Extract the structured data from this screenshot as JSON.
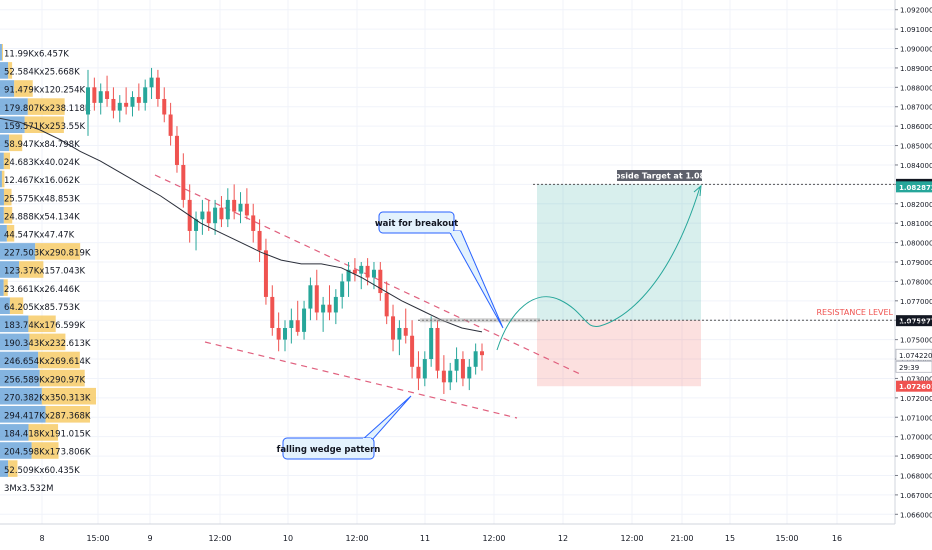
{
  "chart_data": {
    "type": "candlestick",
    "y_axis": {
      "range": [
        1.0655,
        1.0925
      ],
      "ticks": [
        "1.066000",
        "1.067000",
        "1.068000",
        "1.069000",
        "1.070000",
        "1.071000",
        "1.072000",
        "1.073000",
        "1.074000",
        "1.075000",
        "1.076000",
        "1.077000",
        "1.078000",
        "1.079000",
        "1.080000",
        "1.081000",
        "1.082000",
        "1.083000",
        "1.084000",
        "1.085000",
        "1.086000",
        "1.087000",
        "1.088000",
        "1.089000",
        "1.090000",
        "1.091000",
        "1.092000"
      ],
      "tick_values": [
        1.066,
        1.067,
        1.068,
        1.069,
        1.07,
        1.071,
        1.072,
        1.073,
        1.074,
        1.075,
        1.076,
        1.077,
        1.078,
        1.079,
        1.08,
        1.081,
        1.082,
        1.083,
        1.084,
        1.085,
        1.086,
        1.087,
        1.088,
        1.089,
        1.09,
        1.091,
        1.092
      ]
    },
    "x_axis": {
      "labels": [
        "8",
        "15:00",
        "9",
        "12:00",
        "10",
        "12:00",
        "11",
        "12:00",
        "12",
        "12:00",
        "21:00",
        "15",
        "15:00",
        "16"
      ]
    },
    "price_tags": [
      {
        "label": "1.083000",
        "value": 1.083,
        "color": "#131722",
        "kind": "box"
      },
      {
        "label": "1.082872",
        "value": 1.082872,
        "color": "#26a69a",
        "kind": "box"
      },
      {
        "label": "1.075977",
        "value": 1.075977,
        "color": "#131722",
        "kind": "box"
      },
      {
        "label": "1.075856",
        "value": 1.075856,
        "color": "",
        "kind": "text"
      },
      {
        "label": "1.074220",
        "value": 1.07422,
        "color": "#ffffff",
        "kind": "outlined"
      },
      {
        "label": "29:39",
        "value": 1.0736,
        "color": "#ffffff",
        "kind": "outlined"
      },
      {
        "label": "1.072601",
        "value": 1.072601,
        "color": "#ef5350",
        "kind": "box"
      }
    ],
    "volume_profile": {
      "labels": [
        "11.99Kx6.457K",
        "52.584Kx25.668K",
        "91.479Kx120.254K",
        "179.807Kx238.118K",
        "159.571Kx253.55K",
        "58.947Kx84.798K",
        "24.683Kx40.024K",
        "12.467Kx16.062K",
        "25.575Kx48.853K",
        "24.888Kx54.134K",
        "44.547Kx47.47K",
        "227.503Kx290.819K",
        "123.37Kx157.043K",
        "23.661Kx26.446K",
        "64.205Kx85.753K",
        "183.74Kx176.599K",
        "190.343Kx232.613K",
        "246.654Kx269.614K",
        "256.589Kx290.97K",
        "270.382Kx350.313K",
        "294.417Kx287.368K",
        "184.418Kx191.015K",
        "204.598Kx173.806K",
        "52.509Kx60.435K",
        "3Mx3.532M"
      ],
      "buy": [
        12.0,
        52.6,
        91.5,
        179.8,
        159.6,
        58.9,
        24.7,
        12.5,
        25.6,
        24.9,
        44.5,
        227.5,
        123.4,
        23.7,
        64.2,
        183.7,
        190.3,
        246.7,
        256.6,
        270.4,
        294.4,
        184.4,
        204.6,
        52.5
      ],
      "sell": [
        6.5,
        25.7,
        120.3,
        238.1,
        253.6,
        84.8,
        40.0,
        16.1,
        48.9,
        54.1,
        47.5,
        290.8,
        157.0,
        26.4,
        85.8,
        176.6,
        232.6,
        269.6,
        291.0,
        350.3,
        287.4,
        191.0,
        173.8,
        60.4
      ],
      "buy_color": "#5b9bd5",
      "sell_color": "#f6c453"
    },
    "candles_ohlc": [
      [
        1.0866,
        1.0889,
        1.0855,
        1.088
      ],
      [
        1.088,
        1.0885,
        1.0868,
        1.0872
      ],
      [
        1.0872,
        1.0882,
        1.0866,
        1.0878
      ],
      [
        1.0878,
        1.0886,
        1.087,
        1.0874
      ],
      [
        1.0874,
        1.088,
        1.0864,
        1.0868
      ],
      [
        1.0868,
        1.0876,
        1.0862,
        1.0872
      ],
      [
        1.0872,
        1.088,
        1.0866,
        1.087
      ],
      [
        1.087,
        1.0878,
        1.0865,
        1.0875
      ],
      [
        1.0875,
        1.0882,
        1.0868,
        1.0872
      ],
      [
        1.0872,
        1.0884,
        1.0868,
        1.088
      ],
      [
        1.088,
        1.089,
        1.0874,
        1.0885
      ],
      [
        1.0885,
        1.0889,
        1.087,
        1.0874
      ],
      [
        1.0874,
        1.088,
        1.0862,
        1.0866
      ],
      [
        1.0866,
        1.0872,
        1.085,
        1.0855
      ],
      [
        1.0855,
        1.086,
        1.0836,
        1.084
      ],
      [
        1.084,
        1.0846,
        1.0818,
        1.0822
      ],
      [
        1.0822,
        1.083,
        1.08,
        1.0806
      ],
      [
        1.0806,
        1.0816,
        1.0796,
        1.0812
      ],
      [
        1.0812,
        1.0822,
        1.0804,
        1.0816
      ],
      [
        1.0816,
        1.0822,
        1.0806,
        1.081
      ],
      [
        1.081,
        1.0822,
        1.0804,
        1.0818
      ],
      [
        1.0818,
        1.0824,
        1.0808,
        1.0812
      ],
      [
        1.0812,
        1.0828,
        1.0808,
        1.0822
      ],
      [
        1.0822,
        1.083,
        1.0812,
        1.0816
      ],
      [
        1.0816,
        1.0826,
        1.081,
        1.082
      ],
      [
        1.082,
        1.0828,
        1.0812,
        1.0814
      ],
      [
        1.0814,
        1.082,
        1.08,
        1.0806
      ],
      [
        1.0806,
        1.0812,
        1.079,
        1.0796
      ],
      [
        1.0796,
        1.0802,
        1.0768,
        1.0772
      ],
      [
        1.0772,
        1.0778,
        1.0752,
        1.0756
      ],
      [
        1.0756,
        1.0764,
        1.0744,
        1.075
      ],
      [
        1.075,
        1.076,
        1.0744,
        1.0756
      ],
      [
        1.0756,
        1.0766,
        1.0748,
        1.076
      ],
      [
        1.076,
        1.077,
        1.0752,
        1.0754
      ],
      [
        1.0754,
        1.077,
        1.075,
        1.0766
      ],
      [
        1.0766,
        1.0782,
        1.076,
        1.0778
      ],
      [
        1.0778,
        1.0786,
        1.076,
        1.0764
      ],
      [
        1.0764,
        1.0772,
        1.0754,
        1.0768
      ],
      [
        1.0768,
        1.0778,
        1.076,
        1.0764
      ],
      [
        1.0764,
        1.0776,
        1.0758,
        1.0772
      ],
      [
        1.0772,
        1.0784,
        1.0766,
        1.078
      ],
      [
        1.078,
        1.079,
        1.0772,
        1.0786
      ],
      [
        1.0786,
        1.0792,
        1.078,
        1.0784
      ],
      [
        1.0784,
        1.079,
        1.0776,
        1.0788
      ],
      [
        1.0788,
        1.0792,
        1.0778,
        1.0782
      ],
      [
        1.0782,
        1.079,
        1.0776,
        1.0786
      ],
      [
        1.0786,
        1.079,
        1.077,
        1.0774
      ],
      [
        1.0774,
        1.078,
        1.0758,
        1.0762
      ],
      [
        1.0762,
        1.0768,
        1.0744,
        1.075
      ],
      [
        1.075,
        1.076,
        1.0742,
        1.0756
      ],
      [
        1.0756,
        1.0766,
        1.0748,
        1.0752
      ],
      [
        1.0752,
        1.076,
        1.073,
        1.0736
      ],
      [
        1.0736,
        1.0744,
        1.0724,
        1.073
      ],
      [
        1.073,
        1.0744,
        1.0726,
        1.074
      ],
      [
        1.074,
        1.0762,
        1.0736,
        1.0756
      ],
      [
        1.0756,
        1.076,
        1.073,
        1.0734
      ],
      [
        1.0734,
        1.0742,
        1.0722,
        1.0728
      ],
      [
        1.0728,
        1.0738,
        1.0724,
        1.0734
      ],
      [
        1.0734,
        1.0746,
        1.0728,
        1.074
      ],
      [
        1.074,
        1.0744,
        1.0726,
        1.073
      ],
      [
        1.073,
        1.074,
        1.0724,
        1.0736
      ],
      [
        1.0736,
        1.0748,
        1.0732,
        1.0744
      ],
      [
        1.0744,
        1.0748,
        1.0734,
        1.0742
      ]
    ],
    "moving_average": [
      [
        1.0858,
        1.0864
      ],
      [
        1.0862,
        1.0862
      ],
      [
        1.085,
        1.0858
      ],
      [
        1.084,
        1.0853
      ],
      [
        1.083,
        1.0847
      ],
      [
        1.0822,
        1.0842
      ],
      [
        1.0814,
        1.0836
      ],
      [
        1.0806,
        1.083
      ],
      [
        1.0798,
        1.0824
      ],
      [
        1.079,
        1.0817
      ],
      [
        1.0782,
        1.081
      ],
      [
        1.0776,
        1.0805
      ],
      [
        1.0772,
        1.08
      ],
      [
        1.077,
        1.0795
      ],
      [
        1.0767,
        1.0791
      ],
      [
        1.0764,
        1.0789
      ],
      [
        1.076,
        1.0789
      ],
      [
        1.0756,
        1.0787
      ],
      [
        1.0752,
        1.0782
      ],
      [
        1.0748,
        1.0776
      ],
      [
        1.0746,
        1.077
      ],
      [
        1.0744,
        1.0765
      ],
      [
        1.0744,
        1.076
      ],
      [
        1.0745,
        1.0756
      ],
      [
        1.0745,
        1.0754
      ]
    ],
    "annotations": [
      {
        "label": "wait for breakout"
      },
      {
        "label": "falling wedge pattern"
      },
      {
        "label": "Upside Target at 1.083"
      },
      {
        "label": "RESISTANCE LEVEL",
        "value": 1.076
      }
    ],
    "position": {
      "entry": 1.076,
      "target": 1.083,
      "stop": 1.0726,
      "profit_color": "#26a69a",
      "loss_color": "#ef5350"
    }
  }
}
